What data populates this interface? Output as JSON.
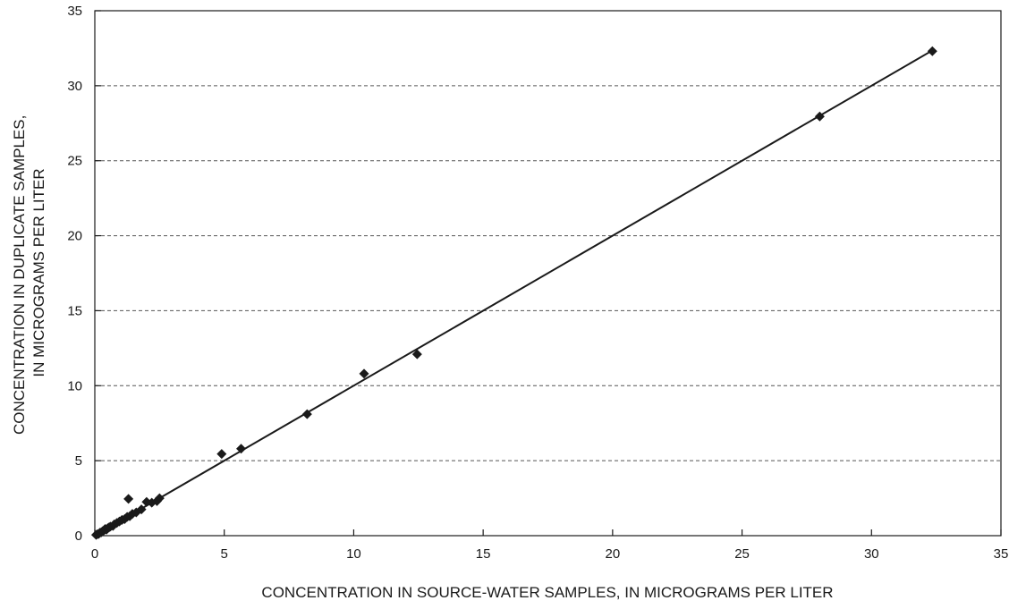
{
  "chart_data": {
    "type": "scatter",
    "title": "",
    "xlabel": "CONCENTRATION IN SOURCE-WATER SAMPLES, IN MICROGRAMS PER LITER",
    "ylabel_lines": [
      "CONCENTRATION IN DUPLICATE SAMPLES,",
      "IN MICROGRAMS PER LITER"
    ],
    "xlim": [
      0,
      35
    ],
    "ylim": [
      0,
      35
    ],
    "xticks": [
      0,
      5,
      10,
      15,
      20,
      25,
      30,
      35
    ],
    "yticks": [
      0,
      5,
      10,
      15,
      20,
      25,
      30,
      35
    ],
    "grid": "horizontal dashed",
    "legend": "none",
    "marker": "diamond",
    "line_color": "#1a1a1a",
    "marker_color": "#1a1a1a",
    "series": [
      {
        "points": [
          [
            0.05,
            0.05
          ],
          [
            0.1,
            0.1
          ],
          [
            0.15,
            0.12
          ],
          [
            0.2,
            0.2
          ],
          [
            0.25,
            0.22
          ],
          [
            0.3,
            0.3
          ],
          [
            0.35,
            0.35
          ],
          [
            0.4,
            0.45
          ],
          [
            0.45,
            0.4
          ],
          [
            0.5,
            0.5
          ],
          [
            0.55,
            0.55
          ],
          [
            0.6,
            0.6
          ],
          [
            0.7,
            0.65
          ],
          [
            0.75,
            0.75
          ],
          [
            0.85,
            0.85
          ],
          [
            0.95,
            0.95
          ],
          [
            1.05,
            1.05
          ],
          [
            1.15,
            1.1
          ],
          [
            1.25,
            1.25
          ],
          [
            1.35,
            1.3
          ],
          [
            1.3,
            2.45
          ],
          [
            1.45,
            1.45
          ],
          [
            1.6,
            1.55
          ],
          [
            1.8,
            1.75
          ],
          [
            2.0,
            2.25
          ],
          [
            2.2,
            2.2
          ],
          [
            2.4,
            2.3
          ],
          [
            2.5,
            2.5
          ],
          [
            4.9,
            5.45
          ],
          [
            5.65,
            5.8
          ],
          [
            8.2,
            8.1
          ],
          [
            10.4,
            10.8
          ],
          [
            12.45,
            12.1
          ],
          [
            28.0,
            27.95
          ],
          [
            32.35,
            32.3
          ]
        ]
      }
    ],
    "line": {
      "x": [
        0,
        32.35
      ],
      "y": [
        0,
        32.35
      ]
    }
  }
}
